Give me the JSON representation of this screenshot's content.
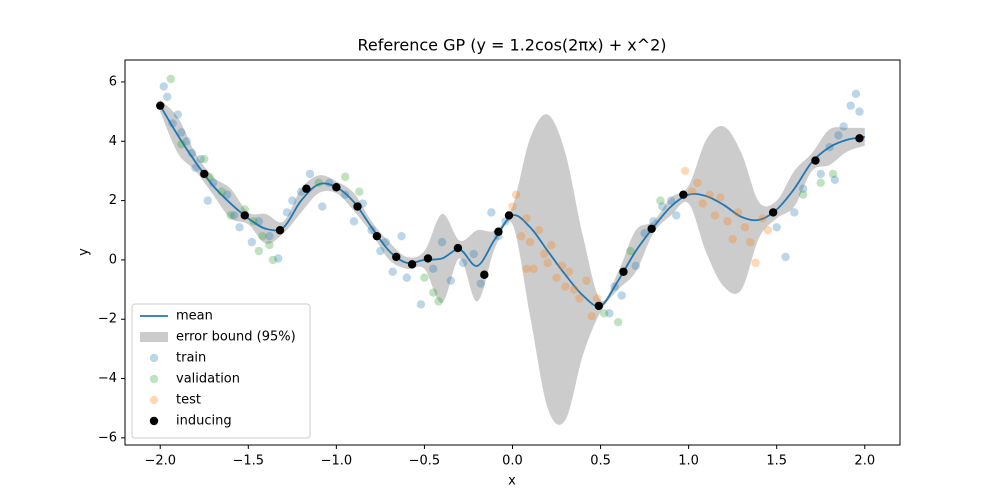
{
  "chart_data": {
    "type": "line",
    "title": "Reference GP (y = 1.2cos(2πx) + x^2)",
    "x_label": "x",
    "y_label": "y",
    "xlim": [
      -2.2,
      2.2
    ],
    "ylim": [
      -6.24,
      6.74
    ],
    "xticks": [
      {
        "value": -2.0,
        "label": "−2.0"
      },
      {
        "value": -1.5,
        "label": "−1.5"
      },
      {
        "value": -1.0,
        "label": "−1.0"
      },
      {
        "value": -0.5,
        "label": "−0.5"
      },
      {
        "value": 0.0,
        "label": "0.0"
      },
      {
        "value": 0.5,
        "label": "0.5"
      },
      {
        "value": 1.0,
        "label": "1.0"
      },
      {
        "value": 1.5,
        "label": "1.5"
      },
      {
        "value": 2.0,
        "label": "2.0"
      }
    ],
    "yticks": [
      {
        "value": -6,
        "label": "−6"
      },
      {
        "value": -4,
        "label": "−4"
      },
      {
        "value": -2,
        "label": "−2"
      },
      0,
      2,
      4,
      6
    ],
    "legend": "lower left",
    "series": [
      {
        "name": "mean",
        "type": "line",
        "color": "#1f77b4",
        "x": [
          -2.0,
          -1.9,
          -1.8,
          -1.7,
          -1.6,
          -1.5,
          -1.4,
          -1.3,
          -1.2,
          -1.1,
          -1.0,
          -0.9,
          -0.8,
          -0.7,
          -0.6,
          -0.5,
          -0.4,
          -0.3,
          -0.2,
          -0.1,
          0.0,
          0.1,
          0.2,
          0.3,
          0.4,
          0.5,
          0.6,
          0.7,
          0.8,
          0.9,
          1.0,
          1.1,
          1.2,
          1.3,
          1.4,
          1.5,
          1.6,
          1.7,
          1.8,
          1.9,
          2.0
        ],
        "values": [
          5.2,
          4.2,
          3.3,
          2.5,
          1.9,
          1.4,
          1.05,
          1.1,
          2.0,
          2.55,
          2.45,
          1.95,
          1.1,
          0.3,
          -0.1,
          0.0,
          0.05,
          0.35,
          -0.2,
          0.7,
          1.5,
          1.1,
          0.3,
          -0.5,
          -1.2,
          -1.55,
          -0.7,
          0.3,
          1.1,
          1.8,
          2.2,
          2.15,
          1.85,
          1.45,
          1.35,
          1.7,
          2.4,
          3.3,
          3.8,
          4.05,
          4.15
        ]
      },
      {
        "name": "error bound (95%)",
        "type": "band",
        "color": "#cccccc",
        "x": [
          -2.0,
          -1.9,
          -1.8,
          -1.7,
          -1.6,
          -1.5,
          -1.4,
          -1.3,
          -1.2,
          -1.1,
          -1.0,
          -0.9,
          -0.8,
          -0.7,
          -0.6,
          -0.5,
          -0.4,
          -0.3,
          -0.2,
          -0.1,
          0.0,
          0.1,
          0.2,
          0.3,
          0.4,
          0.5,
          0.6,
          0.7,
          0.8,
          0.9,
          1.0,
          1.1,
          1.2,
          1.3,
          1.4,
          1.5,
          1.6,
          1.7,
          1.8,
          1.9,
          2.0
        ],
        "lower": [
          5.0,
          3.6,
          3.0,
          2.2,
          1.4,
          1.2,
          0.55,
          0.9,
          1.6,
          2.25,
          2.25,
          1.65,
          0.9,
          0.0,
          -0.3,
          -0.3,
          -1.45,
          0.05,
          -1.4,
          0.4,
          1.2,
          -1.9,
          -5.0,
          -5.4,
          -3.2,
          -1.75,
          -1.0,
          -0.4,
          0.9,
          1.5,
          1.9,
          0.25,
          -0.9,
          -1.0,
          0.75,
          1.4,
          1.8,
          3.0,
          3.2,
          3.65,
          3.85
        ],
        "upper": [
          5.4,
          4.8,
          3.6,
          2.8,
          2.4,
          1.6,
          1.55,
          1.3,
          2.4,
          2.85,
          2.65,
          2.25,
          1.3,
          0.6,
          0.1,
          0.3,
          1.55,
          0.65,
          1.0,
          1.0,
          1.8,
          4.1,
          4.9,
          3.6,
          0.8,
          -1.35,
          -0.4,
          1.0,
          1.3,
          2.1,
          2.5,
          4.05,
          4.5,
          3.6,
          1.95,
          2.0,
          3.0,
          3.6,
          4.4,
          4.45,
          4.45
        ]
      },
      {
        "name": "train",
        "type": "scatter",
        "color": "#1f77b4",
        "alpha": 0.3,
        "x": [
          -1.98,
          -1.96,
          -1.93,
          -1.9,
          -1.88,
          -1.85,
          -1.82,
          -1.8,
          -1.77,
          -1.73,
          -1.7,
          -1.62,
          -1.58,
          -1.55,
          -1.48,
          -1.44,
          -1.38,
          -1.33,
          -1.28,
          -1.25,
          -1.2,
          -1.15,
          -1.08,
          -1.04,
          -0.95,
          -0.9,
          -0.85,
          -0.8,
          -0.75,
          -0.72,
          -0.68,
          -0.63,
          -0.6,
          -0.52,
          -0.45,
          -0.4,
          -0.35,
          -0.28,
          -0.22,
          -0.18,
          -0.12,
          -0.08,
          -0.04,
          0.55,
          0.58,
          0.62,
          0.7,
          0.75,
          0.8,
          0.85,
          0.9,
          0.93,
          1.5,
          1.55,
          1.6,
          1.65,
          1.75,
          1.8,
          1.85,
          1.88,
          1.92,
          1.95,
          1.97,
          1.83
        ],
        "values": [
          5.85,
          5.5,
          4.6,
          4.9,
          4.3,
          4.0,
          3.6,
          3.1,
          3.4,
          2.0,
          2.6,
          2.2,
          1.5,
          1.1,
          0.6,
          1.3,
          0.8,
          0.05,
          1.6,
          2.0,
          2.3,
          2.9,
          1.8,
          2.6,
          2.2,
          1.3,
          1.9,
          1.0,
          0.3,
          0.6,
          -0.4,
          0.8,
          -0.6,
          -1.5,
          -0.3,
          0.6,
          -0.7,
          -0.1,
          0.2,
          -0.8,
          1.6,
          0.8,
          1.3,
          -1.8,
          -0.9,
          -1.2,
          -0.2,
          0.9,
          1.3,
          1.8,
          2.0,
          1.5,
          1.1,
          0.1,
          1.6,
          2.4,
          2.9,
          3.8,
          4.2,
          4.5,
          5.2,
          5.6,
          5.0,
          2.7
        ]
      },
      {
        "name": "validation",
        "type": "scatter",
        "color": "#2ca02c",
        "alpha": 0.3,
        "x": [
          -1.94,
          -1.88,
          -1.75,
          -1.72,
          -1.65,
          -1.6,
          -1.52,
          -1.47,
          -1.44,
          -1.42,
          -1.38,
          -1.36,
          -1.1,
          -0.95,
          -0.87,
          -0.5,
          -0.45,
          -0.42,
          0.52,
          0.6,
          0.67,
          0.84,
          1.65,
          1.75,
          1.82
        ],
        "values": [
          6.1,
          3.9,
          3.4,
          2.8,
          2.3,
          1.5,
          1.7,
          1.3,
          0.3,
          0.8,
          0.5,
          0.0,
          2.6,
          2.8,
          2.3,
          -0.6,
          -1.1,
          -1.4,
          -1.8,
          -2.1,
          0.3,
          2.0,
          2.2,
          2.6,
          2.9
        ]
      },
      {
        "name": "test",
        "type": "scatter",
        "color": "#ff7f0e",
        "alpha": 0.3,
        "x": [
          0.0,
          0.02,
          0.05,
          0.08,
          0.1,
          0.12,
          0.15,
          0.18,
          0.2,
          0.22,
          0.25,
          0.28,
          0.3,
          0.32,
          0.35,
          0.38,
          0.42,
          0.45,
          0.48,
          0.98,
          1.02,
          1.05,
          1.08,
          1.12,
          1.15,
          1.18,
          1.22,
          1.25,
          1.28,
          1.32,
          1.35,
          1.38,
          1.42,
          1.45,
          0.08
        ],
        "values": [
          1.8,
          2.2,
          0.8,
          1.4,
          0.6,
          -0.3,
          1.0,
          0.2,
          -0.1,
          0.5,
          -0.6,
          -0.2,
          -0.9,
          -0.4,
          -1.0,
          -1.3,
          -0.7,
          -1.9,
          -1.3,
          3.0,
          2.3,
          2.6,
          1.9,
          2.2,
          1.5,
          2.1,
          1.3,
          0.7,
          1.6,
          1.1,
          0.6,
          -0.1,
          1.4,
          1.0,
          -0.3
        ]
      },
      {
        "name": "inducing",
        "type": "scatter",
        "color": "#000000",
        "alpha": 1,
        "x": [
          -2.0,
          -1.75,
          -1.52,
          -1.32,
          -1.17,
          -1.0,
          -0.88,
          -0.77,
          -0.66,
          -0.57,
          -0.48,
          -0.31,
          -0.16,
          -0.08,
          -0.02,
          0.49,
          0.63,
          0.79,
          0.97,
          1.48,
          1.72,
          1.97
        ],
        "values": [
          5.2,
          2.9,
          1.5,
          1.0,
          2.4,
          2.45,
          1.8,
          0.8,
          0.1,
          -0.15,
          0.05,
          0.4,
          -0.5,
          0.95,
          1.5,
          -1.55,
          -0.4,
          1.05,
          2.2,
          1.6,
          3.35,
          4.1
        ]
      }
    ]
  }
}
